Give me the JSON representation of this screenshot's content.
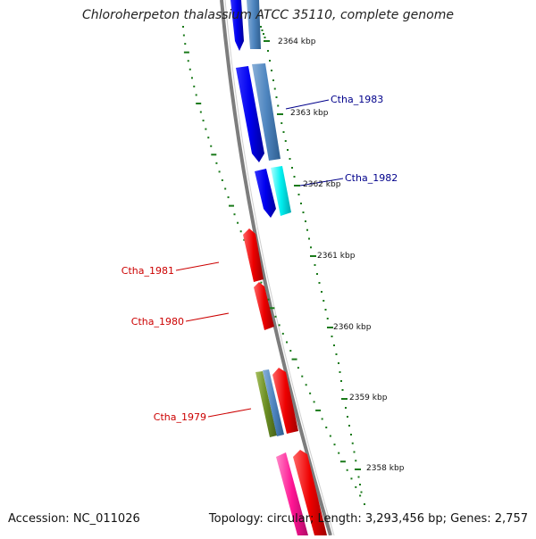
{
  "title": "Chloroherpeton thalassium ATCC 35110, complete genome",
  "footer": {
    "accession": "Accession: NC_011026",
    "summary": "Topology: circular; Length: 3,293,456 bp; Genes: 2,757"
  },
  "colors": {
    "backbone": "#8a8a8a",
    "tick_major": "#1a7a1a",
    "label_forward": "#00008b",
    "label_reverse": "#cc0000"
  },
  "ticks": [
    {
      "label": "2364 kbp"
    },
    {
      "label": "2363 kbp"
    },
    {
      "label": "2362 kbp"
    },
    {
      "label": "2361 kbp"
    },
    {
      "label": "2360 kbp"
    },
    {
      "label": "2359 kbp"
    },
    {
      "label": "2358 kbp"
    }
  ],
  "gene_labels": [
    {
      "text": "Ctha_1983",
      "strand": "forward"
    },
    {
      "text": "Ctha_1982",
      "strand": "forward"
    },
    {
      "text": "Ctha_1981",
      "strand": "reverse"
    },
    {
      "text": "Ctha_1980",
      "strand": "reverse"
    },
    {
      "text": "Ctha_1979",
      "strand": "reverse"
    }
  ]
}
